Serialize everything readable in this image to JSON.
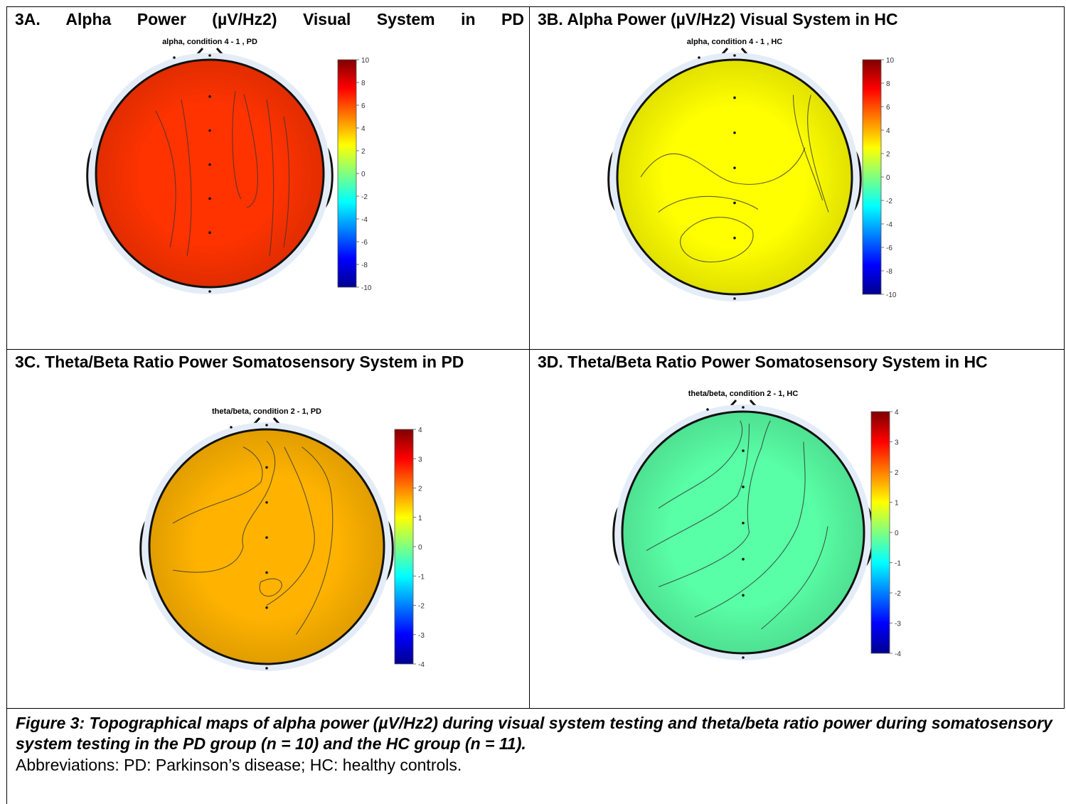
{
  "panels": [
    {
      "id": "A",
      "title": "3A. Alpha Power (µV/Hz2) Visual System in PD",
      "map_title": "alpha, condition 4 - 1 , PD",
      "colorbar_ticks": [
        "10",
        "8",
        "6",
        "4",
        "2",
        "0",
        "-2",
        "-4",
        "-6",
        "-8",
        "-10"
      ],
      "colormap": "jet",
      "range": [
        -10,
        10
      ],
      "level": 6.5
    },
    {
      "id": "B",
      "title": "3B. Alpha Power (µV/Hz2) Visual System in HC",
      "map_title": "alpha, condition 4 - 1 , HC",
      "colorbar_ticks": [
        "10",
        "8",
        "6",
        "4",
        "2",
        "0",
        "-2",
        "-4",
        "-6",
        "-8",
        "-10"
      ],
      "colormap": "jet",
      "range": [
        -10,
        10
      ],
      "level": 2.5
    },
    {
      "id": "C",
      "title": "3C. Theta/Beta Ratio Power Somatosensory System in PD",
      "map_title": "theta/beta, condition 2 - 1, PD",
      "colorbar_ticks": [
        "4",
        "3",
        "2",
        "1",
        "0",
        "-1",
        "-2",
        "-3",
        "-4"
      ],
      "colormap": "jet",
      "range": [
        -4,
        4
      ],
      "level": 1.6
    },
    {
      "id": "D",
      "title": "3D. Theta/Beta Ratio Power Somatosensory System in HC",
      "map_title": "theta/beta, condition 2 - 1, HC",
      "colorbar_ticks": [
        "4",
        "3",
        "2",
        "1",
        "0",
        "-1",
        "-2",
        "-3",
        "-4"
      ],
      "colormap": "jet",
      "range": [
        -4,
        4
      ],
      "level": -0.3
    }
  ],
  "caption": {
    "bold": "Figure 3: Topographical maps of alpha power (µV/Hz2) during visual system testing and theta/beta ratio power during somatosensory system testing in the PD group (n = 10) and the HC group (n = 11).",
    "abbr": "Abbreviations: PD: Parkinson’s disease; HC: healthy controls."
  }
}
